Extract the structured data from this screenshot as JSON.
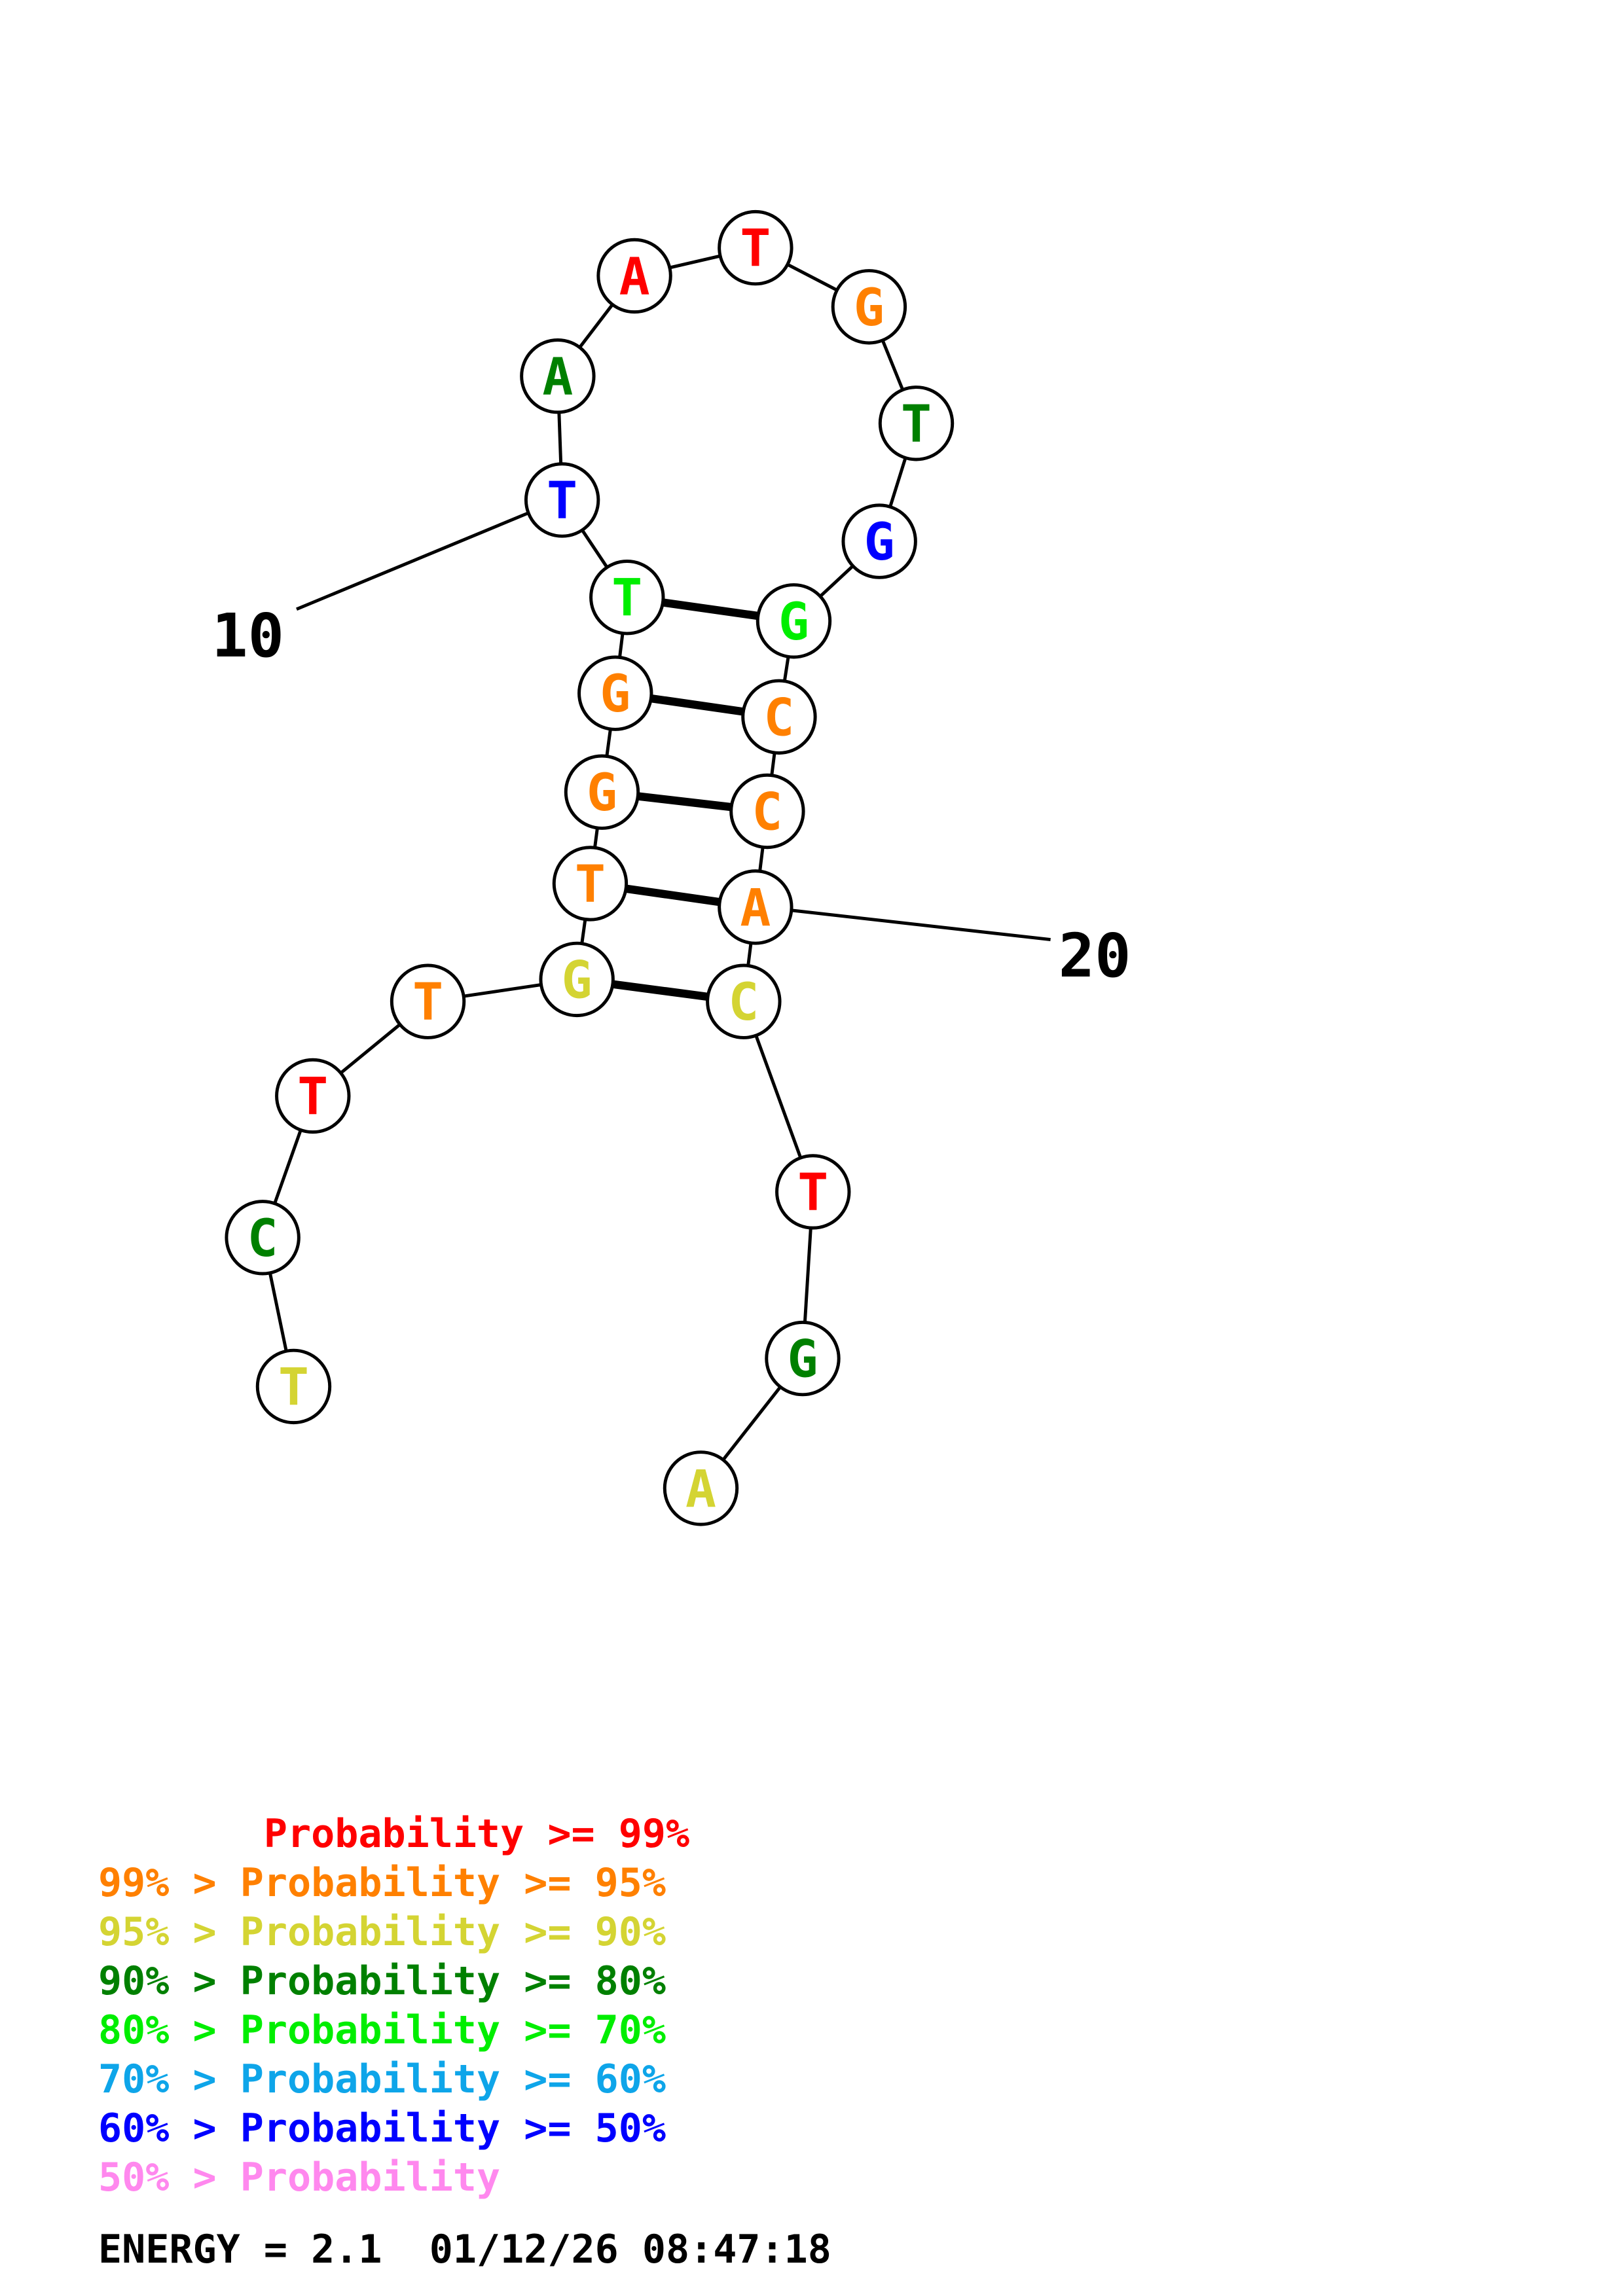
{
  "nucleotides": [
    {
      "letter": "T",
      "color": "#d4d433"
    },
    {
      "letter": "C",
      "color": "#008000"
    },
    {
      "letter": "T",
      "color": "#ff0000"
    },
    {
      "letter": "T",
      "color": "#ff8000"
    },
    {
      "letter": "G",
      "color": "#d4d433"
    },
    {
      "letter": "T",
      "color": "#ff8000"
    },
    {
      "letter": "G",
      "color": "#ff8000"
    },
    {
      "letter": "G",
      "color": "#ff8000"
    },
    {
      "letter": "T",
      "color": "#00ee00"
    },
    {
      "letter": "T",
      "color": "#0000ff"
    },
    {
      "letter": "A",
      "color": "#008000"
    },
    {
      "letter": "A",
      "color": "#ff0000"
    },
    {
      "letter": "T",
      "color": "#ff0000"
    },
    {
      "letter": "G",
      "color": "#ff8000"
    },
    {
      "letter": "T",
      "color": "#008000"
    },
    {
      "letter": "G",
      "color": "#0000ff"
    },
    {
      "letter": "G",
      "color": "#00ee00"
    },
    {
      "letter": "C",
      "color": "#ff8000"
    },
    {
      "letter": "C",
      "color": "#ff8000"
    },
    {
      "letter": "A",
      "color": "#ff8000"
    },
    {
      "letter": "C",
      "color": "#d4d433"
    },
    {
      "letter": "T",
      "color": "#ff0000"
    },
    {
      "letter": "G",
      "color": "#008000"
    },
    {
      "letter": "A",
      "color": "#d4d433"
    }
  ],
  "base_pairs": [
    [
      5,
      21
    ],
    [
      6,
      20
    ],
    [
      7,
      19
    ],
    [
      8,
      18
    ],
    [
      9,
      17
    ]
  ],
  "numbering_labels": [
    {
      "text": "10",
      "position": 10
    },
    {
      "text": "20",
      "position": 20
    }
  ],
  "legend": [
    {
      "text": "       Probability >= 99%",
      "color": "#ff0000"
    },
    {
      "text": "99% > Probability >= 95%",
      "color": "#ff8000"
    },
    {
      "text": "95% > Probability >= 90%",
      "color": "#d4d433"
    },
    {
      "text": "90% > Probability >= 80%",
      "color": "#008000"
    },
    {
      "text": "80% > Probability >= 70%",
      "color": "#00ee00"
    },
    {
      "text": "70% > Probability >= 60%",
      "color": "#0ea5e9"
    },
    {
      "text": "60% > Probability >= 50%",
      "color": "#0000ff"
    },
    {
      "text": "50% > Probability",
      "color": "#ff88ee"
    }
  ],
  "energy_line": "ENERGY = 2.1  01/12/26 08:47:18"
}
